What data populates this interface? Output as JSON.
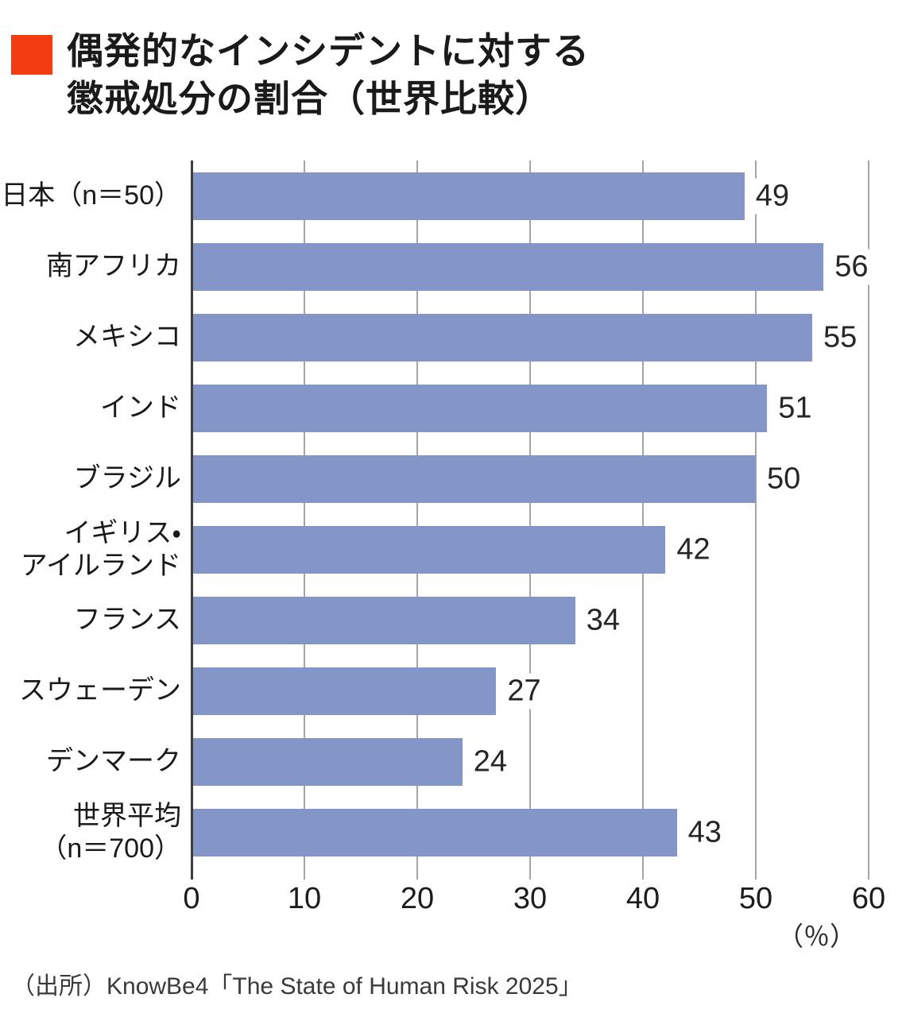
{
  "title": {
    "line1": "偶発的なインシデントに対する",
    "line2": "懲戒処分の割合（世界比較）"
  },
  "source": "（出所）KnowBe4「The State of Human Risk 2025」",
  "colors": {
    "accent": "#f43c13",
    "bar": "#8495c8",
    "grid": "#a5a5a5",
    "axis": "#3d3d3d",
    "text": "#1a1a1a"
  },
  "chart_data": {
    "type": "bar",
    "orientation": "horizontal",
    "title": "偶発的なインシデントに対する懲戒処分の割合（世界比較）",
    "categories": [
      "日本（n＝50）",
      "南アフリカ",
      "メキシコ",
      "インド",
      "ブラジル",
      "イギリス・アイルランド",
      "フランス",
      "スウェーデン",
      "デンマーク",
      "世界平均（n＝700）"
    ],
    "category_lines": [
      [
        "日本（n＝50）"
      ],
      [
        "南アフリカ"
      ],
      [
        "メキシコ"
      ],
      [
        "インド"
      ],
      [
        "ブラジル"
      ],
      [
        "イギリス・",
        "アイルランド"
      ],
      [
        "フランス"
      ],
      [
        "スウェーデン"
      ],
      [
        "デンマーク"
      ],
      [
        "世界平均",
        "（n＝700）"
      ]
    ],
    "values": [
      49,
      56,
      55,
      51,
      50,
      42,
      34,
      27,
      24,
      43
    ],
    "xlim": [
      0,
      60
    ],
    "xticks": [
      0,
      10,
      20,
      30,
      40,
      50,
      60
    ],
    "unit_label": "（％）",
    "grid": true,
    "legend": false,
    "value_labels": "outside-end"
  }
}
